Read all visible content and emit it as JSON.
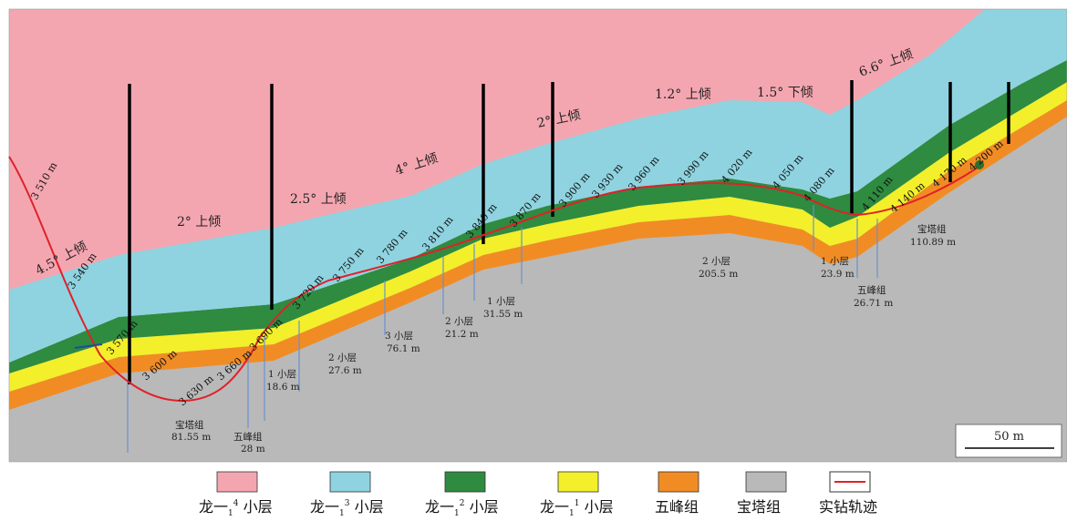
{
  "colors": {
    "long4": "#f4a6b0",
    "long3": "#8fd3e0",
    "long2": "#2e8b40",
    "long1": "#f3ef2a",
    "wufeng": "#f18c24",
    "baota": "#b9b9b9",
    "trajectory": "#e0202a"
  },
  "dip_labels": [
    {
      "text": "4.5°  上倾"
    },
    {
      "text": "2°  上倾"
    },
    {
      "text": "2.5°  上倾"
    },
    {
      "text": "4°  上倾"
    },
    {
      "text": "2°  上倾"
    },
    {
      "text": "1.2°  上倾"
    },
    {
      "text": "1.5°  下倾"
    },
    {
      "text": "6.6°  上倾"
    }
  ],
  "md_labels": [
    "3 510 m",
    "3 540 m",
    "3 570 m",
    "3 600 m",
    "3 630 m",
    "3 660 m",
    "3 690 m",
    "3 720 m",
    "3 750 m",
    "3 780 m",
    "3 810 m",
    "3 840 m",
    "3 870 m",
    "3 900 m",
    "3 930 m",
    "3 960 m",
    "3 990 m",
    "4 020 m",
    "4 050 m",
    "4 080 m",
    "4 110 m",
    "4 140 m",
    "4 170 m",
    "4 200 m"
  ],
  "zones": [
    {
      "name": "宝塔组",
      "length": "81.55 m"
    },
    {
      "name": "五峰组",
      "length": "28 m"
    },
    {
      "name": "1 小层",
      "length": "18.6 m"
    },
    {
      "name": "2 小层",
      "length": "27.6 m"
    },
    {
      "name": "3 小层",
      "length": "76.1 m"
    },
    {
      "name": "2 小层",
      "length": "21.2 m"
    },
    {
      "name": "1 小层",
      "length": "31.55 m"
    },
    {
      "name": "2 小层",
      "length": "205.5 m"
    },
    {
      "name": "1 小层",
      "length": "23.9 m"
    },
    {
      "name": "五峰组",
      "length": "26.71 m"
    },
    {
      "name": "宝塔组",
      "length": "110.89 m"
    }
  ],
  "scale_bar": {
    "label": "50 m"
  },
  "legend": [
    {
      "base": "龙一",
      "sub": "1",
      "sup": "4",
      "suffix": " 小层",
      "color": "#f4a6b0"
    },
    {
      "base": "龙一",
      "sub": "1",
      "sup": "3",
      "suffix": " 小层",
      "color": "#8fd3e0"
    },
    {
      "base": "龙一",
      "sub": "1",
      "sup": "2",
      "suffix": " 小层",
      "color": "#2e8b40"
    },
    {
      "base": "龙一",
      "sub": "1",
      "sup": "1",
      "suffix": " 小层",
      "color": "#f3ef2a"
    },
    {
      "base": "五峰组",
      "sub": "",
      "sup": "",
      "suffix": "",
      "color": "#f18c24"
    },
    {
      "base": "宝塔组",
      "sub": "",
      "sup": "",
      "suffix": "",
      "color": "#b9b9b9"
    },
    {
      "base": "实钻轨迹",
      "sub": "",
      "sup": "",
      "suffix": "",
      "color": "#e0202a",
      "line": true
    }
  ]
}
